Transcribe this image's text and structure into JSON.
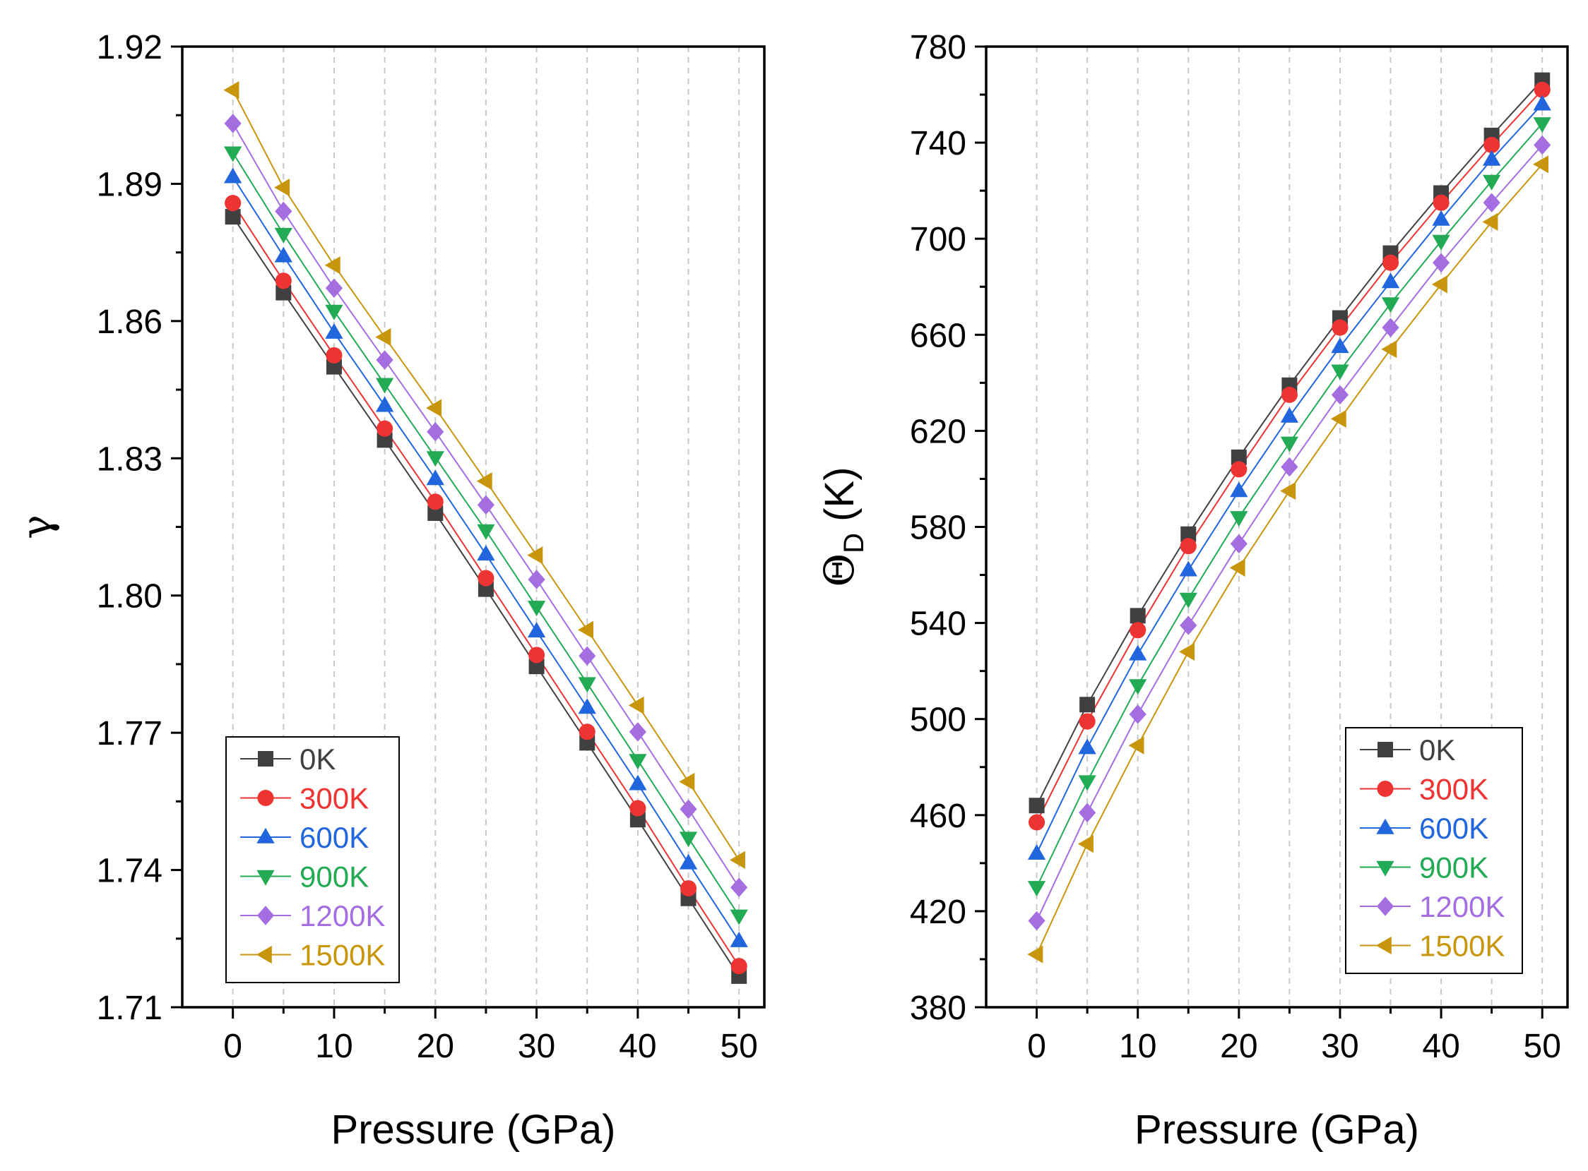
{
  "colors": {
    "0K": "#404040",
    "300K": "#ee3333",
    "600K": "#2266dd",
    "900K": "#22aa55",
    "1200K": "#a56ee0",
    "1500K": "#c8960c"
  },
  "chart_data": [
    {
      "type": "line",
      "xlabel": "Pressure (GPa)",
      "ylabel": "γ",
      "xlim": [
        -5,
        52.5
      ],
      "ylim": [
        1.71,
        1.92
      ],
      "xticks": [
        0,
        10,
        20,
        30,
        40,
        50
      ],
      "yticks": [
        1.71,
        1.74,
        1.77,
        1.8,
        1.83,
        1.86,
        1.89,
        1.92
      ],
      "ytick_labels": [
        "1.71",
        "1.74",
        "1.77",
        "1.80",
        "1.83",
        "1.86",
        "1.89",
        "1.92"
      ],
      "x": [
        0,
        5,
        10,
        15,
        20,
        25,
        30,
        35,
        40,
        45,
        50
      ],
      "legend_position": "bottom-left",
      "series": [
        {
          "name": "0K",
          "marker": "square",
          "values": [
            1.8828,
            1.8662,
            1.85,
            1.834,
            1.818,
            1.8014,
            1.7845,
            1.7678,
            1.751,
            1.7338,
            1.7168
          ]
        },
        {
          "name": "300K",
          "marker": "circle",
          "values": [
            1.8858,
            1.8688,
            1.8525,
            1.8365,
            1.8205,
            1.8038,
            1.787,
            1.7702,
            1.7535,
            1.736,
            1.719
          ]
        },
        {
          "name": "600K",
          "marker": "triangle-up",
          "values": [
            1.8915,
            1.8742,
            1.8575,
            1.8415,
            1.8255,
            1.809,
            1.7922,
            1.7755,
            1.7588,
            1.7415,
            1.7245
          ]
        },
        {
          "name": "900K",
          "marker": "triangle-down",
          "values": [
            1.8968,
            1.879,
            1.8622,
            1.8462,
            1.8302,
            1.8142,
            1.7975,
            1.7808,
            1.764,
            1.747,
            1.73
          ]
        },
        {
          "name": "1200K",
          "marker": "diamond",
          "values": [
            1.9032,
            1.884,
            1.8672,
            1.8515,
            1.8358,
            1.8198,
            1.8035,
            1.7868,
            1.7702,
            1.7533,
            1.7362
          ]
        },
        {
          "name": "1500K",
          "marker": "triangle-left",
          "values": [
            1.9105,
            1.8892,
            1.8722,
            1.8565,
            1.841,
            1.825,
            1.8088,
            1.7925,
            1.776,
            1.7593,
            1.7422
          ]
        }
      ]
    },
    {
      "type": "line",
      "xlabel": "Pressure (GPa)",
      "ylabel_main": "Θ",
      "ylabel_sub": "D",
      "ylabel_unit": " (K)",
      "xlim": [
        -5,
        52.5
      ],
      "ylim": [
        380,
        780
      ],
      "xticks": [
        0,
        10,
        20,
        30,
        40,
        50
      ],
      "yticks": [
        380,
        420,
        460,
        500,
        540,
        580,
        620,
        660,
        700,
        740,
        780
      ],
      "ytick_labels": [
        "380",
        "420",
        "460",
        "500",
        "540",
        "580",
        "620",
        "660",
        "700",
        "740",
        "780"
      ],
      "x": [
        0,
        5,
        10,
        15,
        20,
        25,
        30,
        35,
        40,
        45,
        50
      ],
      "legend_position": "bottom-right",
      "series": [
        {
          "name": "0K",
          "marker": "square",
          "values": [
            464,
            506,
            543,
            577,
            609,
            639,
            667,
            694,
            719,
            743,
            766
          ]
        },
        {
          "name": "300K",
          "marker": "circle",
          "values": [
            457,
            499,
            537,
            572,
            604,
            635,
            663,
            690,
            715,
            739,
            762
          ]
        },
        {
          "name": "600K",
          "marker": "triangle-up",
          "values": [
            444,
            488,
            527,
            562,
            595,
            626,
            655,
            682,
            708,
            733,
            756
          ]
        },
        {
          "name": "900K",
          "marker": "triangle-down",
          "values": [
            430,
            474,
            514,
            550,
            584,
            615,
            645,
            673,
            699,
            724,
            748
          ]
        },
        {
          "name": "1200K",
          "marker": "diamond",
          "values": [
            416,
            461,
            502,
            539,
            573,
            605,
            635,
            663,
            690,
            715,
            739
          ]
        },
        {
          "name": "1500K",
          "marker": "triangle-left",
          "values": [
            402,
            448,
            489,
            528,
            563,
            595,
            625,
            654,
            681,
            707,
            731
          ]
        }
      ]
    }
  ]
}
